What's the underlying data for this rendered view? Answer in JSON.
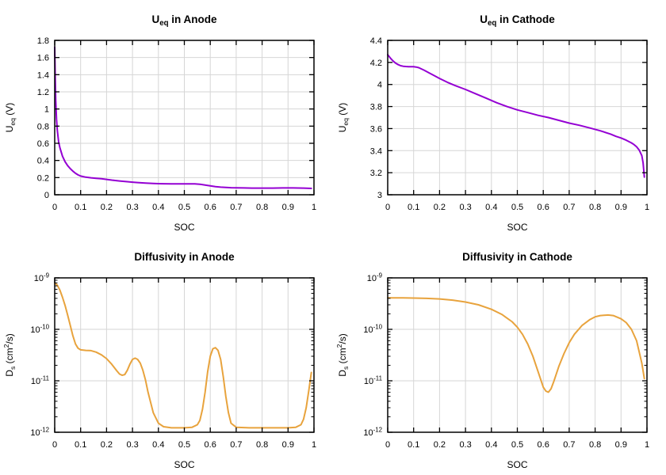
{
  "figure": {
    "background": "#ffffff",
    "grid_color": "#d6d6d6",
    "axis_color": "#000000",
    "text_color": "#000000",
    "accent_purple": "#9400d3",
    "accent_orange": "#e8a33d"
  },
  "chart_data": [
    {
      "id": "ueq-anode",
      "type": "line",
      "title": "U_{eq} in Anode",
      "xlabel": "SOC",
      "ylabel": "U_{eq} (V)",
      "xscale": "linear",
      "yscale": "linear",
      "xlim": [
        0,
        1
      ],
      "ylim": [
        0,
        1.8
      ],
      "grid": true,
      "legend": "none",
      "line_color": "#9400d3",
      "line_width": 2,
      "xticks": {
        "values": [
          0,
          0.1,
          0.2,
          0.3,
          0.4,
          0.5,
          0.6,
          0.7,
          0.8,
          0.9,
          1
        ],
        "labels": [
          "0",
          "0.1",
          "0.2",
          "0.3",
          "0.4",
          "0.5",
          "0.6",
          "0.7",
          "0.8",
          "0.9",
          "1"
        ]
      },
      "yticks": {
        "values": [
          0,
          0.2,
          0.4,
          0.6,
          0.8,
          1,
          1.2,
          1.4,
          1.6,
          1.8
        ],
        "labels": [
          "0",
          "0.2",
          "0.4",
          "0.6",
          "0.8",
          "1",
          "1.2",
          "1.4",
          "1.6",
          "1.8"
        ]
      },
      "x": [
        0,
        0.002,
        0.004,
        0.007,
        0.01,
        0.015,
        0.02,
        0.03,
        0.04,
        0.05,
        0.06,
        0.07,
        0.08,
        0.09,
        0.1,
        0.12,
        0.14,
        0.16,
        0.18,
        0.2,
        0.22,
        0.25,
        0.28,
        0.3,
        0.32,
        0.35,
        0.38,
        0.4,
        0.42,
        0.45,
        0.48,
        0.5,
        0.52,
        0.54,
        0.56,
        0.58,
        0.6,
        0.62,
        0.64,
        0.66,
        0.68,
        0.7,
        0.73,
        0.76,
        0.8,
        0.84,
        0.88,
        0.92,
        0.96,
        0.99
      ],
      "y": [
        1.72,
        1.35,
        1.1,
        0.88,
        0.75,
        0.62,
        0.55,
        0.45,
        0.385,
        0.34,
        0.305,
        0.275,
        0.25,
        0.232,
        0.218,
        0.205,
        0.198,
        0.192,
        0.186,
        0.179,
        0.171,
        0.161,
        0.152,
        0.147,
        0.142,
        0.136,
        0.131,
        0.129,
        0.128,
        0.127,
        0.126,
        0.126,
        0.127,
        0.127,
        0.123,
        0.114,
        0.104,
        0.095,
        0.089,
        0.085,
        0.082,
        0.081,
        0.079,
        0.078,
        0.078,
        0.078,
        0.079,
        0.079,
        0.078,
        0.074
      ]
    },
    {
      "id": "ueq-cathode",
      "type": "line",
      "title": "U_{eq} in Cathode",
      "xlabel": "SOC",
      "ylabel": "U_{eq} (V)",
      "xscale": "linear",
      "yscale": "linear",
      "xlim": [
        0,
        1
      ],
      "ylim": [
        3,
        4.4
      ],
      "grid": true,
      "legend": "none",
      "line_color": "#9400d3",
      "line_width": 2,
      "xticks": {
        "values": [
          0,
          0.1,
          0.2,
          0.3,
          0.4,
          0.5,
          0.6,
          0.7,
          0.8,
          0.9,
          1
        ],
        "labels": [
          "0",
          "0.1",
          "0.2",
          "0.3",
          "0.4",
          "0.5",
          "0.6",
          "0.7",
          "0.8",
          "0.9",
          "1"
        ]
      },
      "yticks": {
        "values": [
          3,
          3.2,
          3.4,
          3.6,
          3.8,
          4,
          4.2,
          4.4
        ],
        "labels": [
          "3",
          "3.2",
          "3.4",
          "3.6",
          "3.8",
          "4",
          "4.2",
          "4.4"
        ]
      },
      "x": [
        0,
        0.01,
        0.02,
        0.03,
        0.04,
        0.05,
        0.06,
        0.07,
        0.08,
        0.09,
        0.1,
        0.11,
        0.12,
        0.14,
        0.16,
        0.18,
        0.2,
        0.23,
        0.26,
        0.3,
        0.34,
        0.38,
        0.42,
        0.46,
        0.5,
        0.54,
        0.58,
        0.62,
        0.66,
        0.7,
        0.74,
        0.78,
        0.82,
        0.86,
        0.88,
        0.9,
        0.92,
        0.94,
        0.95,
        0.96,
        0.97,
        0.98,
        0.985,
        0.99
      ],
      "y": [
        4.27,
        4.24,
        4.215,
        4.195,
        4.18,
        4.17,
        4.165,
        4.163,
        4.162,
        4.162,
        4.161,
        4.158,
        4.152,
        4.13,
        4.105,
        4.08,
        4.055,
        4.02,
        3.99,
        3.955,
        3.915,
        3.875,
        3.835,
        3.8,
        3.77,
        3.745,
        3.72,
        3.7,
        3.675,
        3.65,
        3.63,
        3.605,
        3.58,
        3.55,
        3.53,
        3.515,
        3.495,
        3.47,
        3.455,
        3.435,
        3.405,
        3.355,
        3.29,
        3.16
      ]
    },
    {
      "id": "diffusivity-anode",
      "type": "line",
      "title": "Diffusivity in Anode",
      "xlabel": "SOC",
      "ylabel": "D_{s} (cm^{2}/s)",
      "xscale": "linear",
      "yscale": "log",
      "xlim": [
        0,
        1
      ],
      "ylim": [
        1e-12,
        1e-09
      ],
      "grid": true,
      "legend": "none",
      "line_color": "#e8a33d",
      "line_width": 2,
      "xticks": {
        "values": [
          0,
          0.1,
          0.2,
          0.3,
          0.4,
          0.5,
          0.6,
          0.7,
          0.8,
          0.9,
          1
        ],
        "labels": [
          "0",
          "0.1",
          "0.2",
          "0.3",
          "0.4",
          "0.5",
          "0.6",
          "0.7",
          "0.8",
          "0.9",
          "1"
        ]
      },
      "yticks": {
        "values": [
          1e-12,
          1e-11,
          1e-10,
          1e-09
        ],
        "labels": [
          "10^{-12}",
          "10^{-11}",
          "10^{-10}",
          "10^{-9}"
        ]
      },
      "x": [
        0,
        0.01,
        0.02,
        0.03,
        0.04,
        0.05,
        0.06,
        0.07,
        0.08,
        0.09,
        0.1,
        0.12,
        0.14,
        0.16,
        0.18,
        0.2,
        0.22,
        0.24,
        0.25,
        0.26,
        0.27,
        0.28,
        0.29,
        0.3,
        0.31,
        0.32,
        0.33,
        0.34,
        0.35,
        0.36,
        0.38,
        0.4,
        0.42,
        0.45,
        0.5,
        0.53,
        0.55,
        0.56,
        0.57,
        0.58,
        0.59,
        0.6,
        0.61,
        0.62,
        0.63,
        0.64,
        0.65,
        0.66,
        0.67,
        0.68,
        0.7,
        0.75,
        0.8,
        0.85,
        0.9,
        0.93,
        0.95,
        0.96,
        0.97,
        0.98,
        0.99
      ],
      "y": [
        8e-10,
        7.2e-10,
        5.8e-10,
        4.2e-10,
        2.9e-10,
        1.9e-10,
        1.2e-10,
        7.5e-11,
        5.2e-11,
        4.3e-11,
        4e-11,
        3.9e-11,
        3.85e-11,
        3.6e-11,
        3.2e-11,
        2.7e-11,
        2.1e-11,
        1.55e-11,
        1.35e-11,
        1.28e-11,
        1.32e-11,
        1.6e-11,
        2.1e-11,
        2.6e-11,
        2.75e-11,
        2.6e-11,
        2.2e-11,
        1.6e-11,
        1.05e-11,
        6e-12,
        2.4e-12,
        1.5e-12,
        1.28e-12,
        1.22e-12,
        1.22e-12,
        1.25e-12,
        1.4e-12,
        1.7e-12,
        2.8e-12,
        6e-12,
        1.5e-11,
        3e-11,
        4.2e-11,
        4.4e-11,
        3.9e-11,
        2.6e-11,
        1.2e-11,
        5e-12,
        2.4e-12,
        1.5e-12,
        1.25e-12,
        1.22e-12,
        1.22e-12,
        1.22e-12,
        1.22e-12,
        1.25e-12,
        1.4e-12,
        1.8e-12,
        3e-12,
        6.5e-12,
        1.45e-11
      ]
    },
    {
      "id": "diffusivity-cathode",
      "type": "line",
      "title": "Diffusivity in Cathode",
      "xlabel": "SOC",
      "ylabel": "D_{s} (cm^{2}/s)",
      "xscale": "linear",
      "yscale": "log",
      "xlim": [
        0,
        1
      ],
      "ylim": [
        1e-12,
        1e-09
      ],
      "grid": true,
      "legend": "none",
      "line_color": "#e8a33d",
      "line_width": 2,
      "xticks": {
        "values": [
          0,
          0.1,
          0.2,
          0.3,
          0.4,
          0.5,
          0.6,
          0.7,
          0.8,
          0.9,
          1
        ],
        "labels": [
          "0",
          "0.1",
          "0.2",
          "0.3",
          "0.4",
          "0.5",
          "0.6",
          "0.7",
          "0.8",
          "0.9",
          "1"
        ]
      },
      "yticks": {
        "values": [
          1e-12,
          1e-11,
          1e-10,
          1e-09
        ],
        "labels": [
          "10^{-12}",
          "10^{-11}",
          "10^{-10}",
          "10^{-9}"
        ]
      },
      "x": [
        0,
        0.05,
        0.1,
        0.15,
        0.2,
        0.25,
        0.3,
        0.35,
        0.4,
        0.44,
        0.48,
        0.5,
        0.52,
        0.54,
        0.56,
        0.58,
        0.6,
        0.61,
        0.62,
        0.63,
        0.64,
        0.66,
        0.68,
        0.7,
        0.72,
        0.75,
        0.78,
        0.8,
        0.82,
        0.85,
        0.87,
        0.9,
        0.92,
        0.94,
        0.96,
        0.98,
        0.99
      ],
      "y": [
        4.1e-10,
        4.1e-10,
        4.05e-10,
        4e-10,
        3.9e-10,
        3.7e-10,
        3.4e-10,
        3e-10,
        2.45e-10,
        1.95e-10,
        1.4e-10,
        1.1e-10,
        8e-11,
        5.2e-11,
        3e-11,
        1.5e-11,
        7.5e-12,
        6.3e-12,
        6e-12,
        7e-12,
        9.5e-12,
        1.9e-11,
        3.4e-11,
        5.5e-11,
        8e-11,
        1.2e-10,
        1.55e-10,
        1.75e-10,
        1.85e-10,
        1.9e-10,
        1.85e-10,
        1.6e-10,
        1.35e-10,
        1e-10,
        6e-11,
        2.2e-11,
        1.1e-11
      ]
    }
  ]
}
